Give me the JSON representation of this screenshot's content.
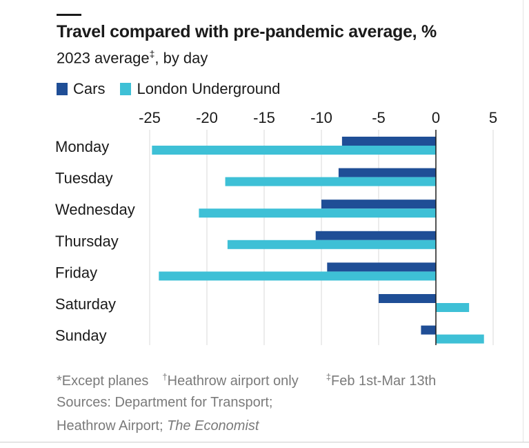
{
  "chart_data": {
    "type": "bar",
    "orientation": "horizontal",
    "title": "Travel compared with pre-pandemic average, %",
    "subtitle_text": "2023 average",
    "subtitle_mark": "‡",
    "subtitle_suffix": ", by day",
    "categories": [
      "Monday",
      "Tuesday",
      "Wednesday",
      "Thursday",
      "Friday",
      "Saturday",
      "Sunday"
    ],
    "series": [
      {
        "name": "Cars",
        "color": "#1f4e96",
        "values": [
          -8.2,
          -8.5,
          -10.0,
          -10.5,
          -9.5,
          -5.0,
          -1.3
        ]
      },
      {
        "name": "London Underground",
        "color": "#3ec0d6",
        "values": [
          -24.8,
          -18.4,
          -20.7,
          -18.2,
          -24.2,
          2.9,
          4.2
        ]
      }
    ],
    "x_ticks": [
      -25,
      -20,
      -15,
      -10,
      -5,
      0,
      5
    ],
    "xlim": [
      -27,
      6
    ],
    "grid": true,
    "legend_position": "top-left"
  },
  "footer": {
    "note1": "*Except planes",
    "note2_mark": "†",
    "note2": "Heathrow airport only",
    "note3_mark": "‡",
    "note3": "Feb 1st-Mar 13th",
    "sources1": "Sources: Department for Transport;",
    "sources2": "Heathrow Airport; ",
    "sources2_italic": "The Economist"
  }
}
